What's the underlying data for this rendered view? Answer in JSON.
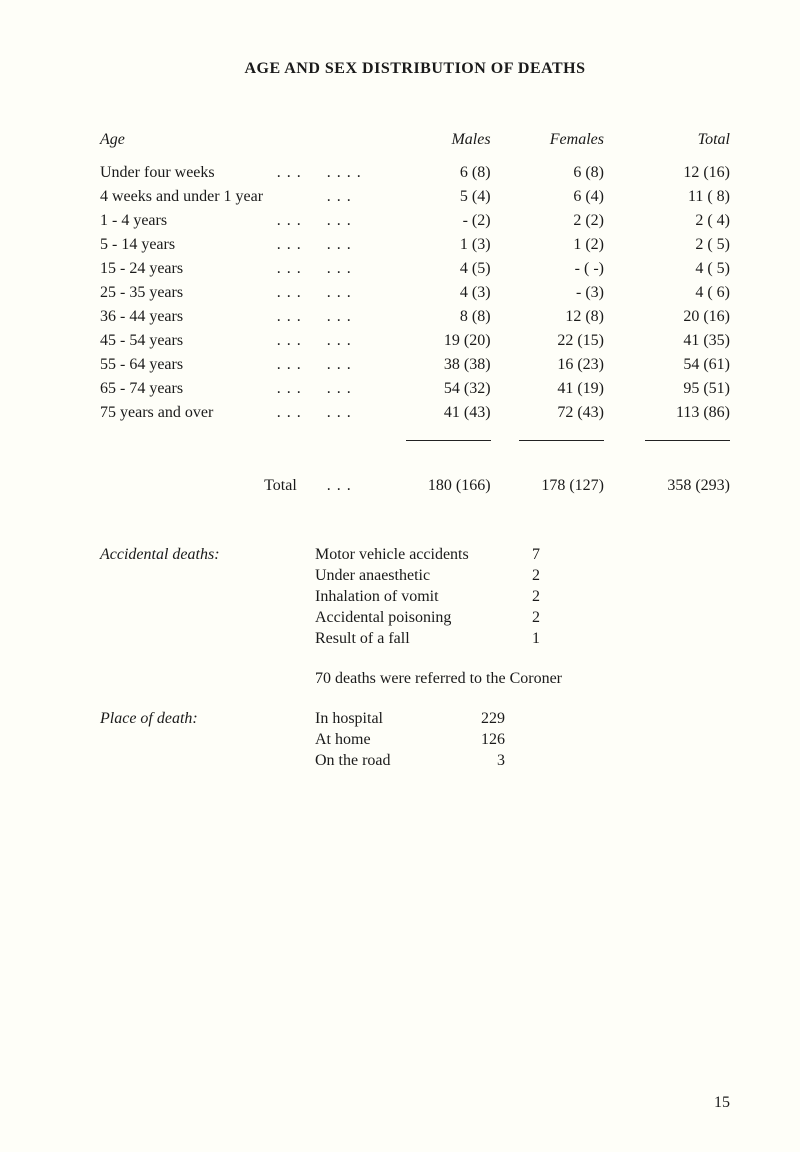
{
  "title": "AGE AND SEX DISTRIBUTION OF DEATHS",
  "columns": {
    "age": "Age",
    "males": "Males",
    "females": "Females",
    "total": "Total"
  },
  "rows": [
    {
      "age": "Under four weeks",
      "d1": ". . .",
      "d2": ". . . .",
      "males": "6 (8)",
      "females": "6 (8)",
      "total": "12 (16)"
    },
    {
      "age": "4 weeks and under 1 year",
      "d1": "",
      "d2": ". . .",
      "males": "5 (4)",
      "females": "6 (4)",
      "total": "11 (  8)"
    },
    {
      "age": "1 - 4   years",
      "indent": true,
      "d1": ". . .",
      "d2": ". . .",
      "males": "- (2)",
      "females": "2 (2)",
      "total": "2 (  4)"
    },
    {
      "age": "5 - 14 years",
      "indent": true,
      "d1": ". . .",
      "d2": ". . .",
      "males": "1 (3)",
      "females": "1 (2)",
      "total": "2 (  5)"
    },
    {
      "age": "15 - 24 years",
      "d1": ". . .",
      "d2": ". . .",
      "males": "4 (5)",
      "females": "-  ( -)",
      "total": "4 (  5)"
    },
    {
      "age": "25 - 35 years",
      "d1": ". . .",
      "d2": ". . .",
      "males": "4 (3)",
      "females": "-  (3)",
      "total": "4 (  6)"
    },
    {
      "age": "36 - 44 years",
      "d1": ". . .",
      "d2": ". . .",
      "males": "8 (8)",
      "females": "12 (8)",
      "total": "20 (16)"
    },
    {
      "age": "45 - 54 years",
      "d1": ". . .",
      "d2": ". . .",
      "males": "19 (20)",
      "females": "22 (15)",
      "total": "41 (35)"
    },
    {
      "age": "55 - 64 years",
      "d1": ". . .",
      "d2": ". . .",
      "males": "38 (38)",
      "females": "16 (23)",
      "total": "54 (61)"
    },
    {
      "age": "65 - 74 years",
      "d1": ". . .",
      "d2": ". . .",
      "males": "54 (32)",
      "females": "41 (19)",
      "total": "95 (51)"
    },
    {
      "age": "75 years and over",
      "d1": ". . .",
      "d2": ". . .",
      "males": "41 (43)",
      "females": "72 (43)",
      "total": "113 (86)"
    }
  ],
  "total_label": "Total",
  "total_dots": ". . .",
  "totals": {
    "males": "180 (166)",
    "females": "178 (127)",
    "total": "358 (293)"
  },
  "accidental": {
    "label": "Accidental deaths:",
    "items": [
      {
        "k": "Motor vehicle accidents",
        "v": "7"
      },
      {
        "k": "Under anaesthetic",
        "v": "2"
      },
      {
        "k": "Inhalation of vomit",
        "v": "2"
      },
      {
        "k": "Accidental poisoning",
        "v": "2"
      },
      {
        "k": "Result of a fall",
        "v": "1"
      }
    ]
  },
  "coroner_note": "70 deaths were referred to the Coroner",
  "place": {
    "label": "Place of death:",
    "items": [
      {
        "k": "In hospital",
        "v": "229"
      },
      {
        "k": "At home",
        "v": "126"
      },
      {
        "k": "On the road",
        "v": "3"
      }
    ]
  },
  "page_number": "15"
}
